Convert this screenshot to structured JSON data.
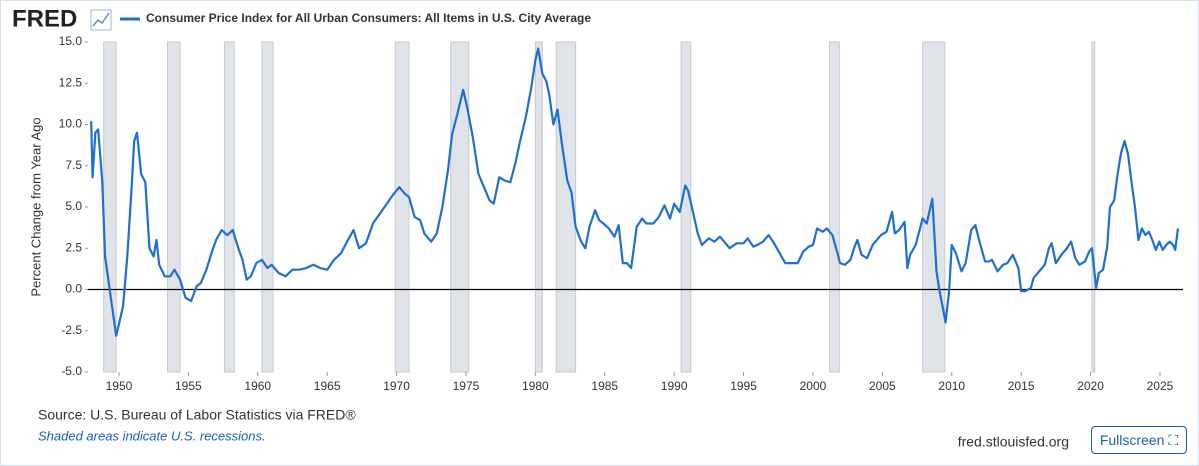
{
  "chart_data": {
    "type": "line",
    "logo": "FRED",
    "y_label": "Percent Change from Year Ago",
    "source": "Source: U.S. Bureau of Labor Statistics via FRED®",
    "note": "Shaded areas indicate U.S. recessions.",
    "site": "fred.stlouisfed.org",
    "button": "Fullscreen",
    "xlim": [
      1947.77,
      2026.66
    ],
    "xticks": [
      1950,
      1955,
      1960,
      1965,
      1970,
      1975,
      1980,
      1985,
      1990,
      1995,
      2000,
      2005,
      2010,
      2015,
      2020,
      2025
    ],
    "ylim": [
      -5,
      15
    ],
    "yticks": [
      {
        "value": 15,
        "label": "15.0"
      },
      {
        "value": 12.5,
        "label": "12.5"
      },
      {
        "value": 10,
        "label": "10.0"
      },
      {
        "value": 7.5,
        "label": "7.5"
      },
      {
        "value": 5,
        "label": "5.0"
      },
      {
        "value": 2.5,
        "label": "2.5"
      },
      {
        "value": 0,
        "label": "0.0"
      },
      {
        "value": -2.5,
        "label": "-2.5"
      },
      {
        "value": -5,
        "label": "-5.0"
      }
    ],
    "zero_line": 0,
    "recession_color": "#e0e4e9",
    "recessions": [
      [
        1948.9,
        1949.8
      ],
      [
        1953.5,
        1954.4
      ],
      [
        1957.6,
        1958.3
      ],
      [
        1960.3,
        1961.1
      ],
      [
        1969.9,
        1970.9
      ],
      [
        1973.9,
        1975.2
      ],
      [
        1980.0,
        1980.5
      ],
      [
        1981.5,
        1982.9
      ],
      [
        1990.5,
        1991.2
      ],
      [
        2001.2,
        2001.9
      ],
      [
        2007.9,
        2009.5
      ],
      [
        2020.1,
        2020.3
      ]
    ],
    "x": [
      1948.0,
      1948.1,
      1948.3,
      1948.5,
      1948.8,
      1949.0,
      1949.2,
      1949.5,
      1949.8,
      1950.0,
      1950.3,
      1950.6,
      1950.9,
      1951.1,
      1951.3,
      1951.6,
      1951.9,
      1952.2,
      1952.5,
      1952.7,
      1952.9,
      1953.3,
      1953.7,
      1954.0,
      1954.4,
      1954.8,
      1955.2,
      1955.6,
      1955.9,
      1956.3,
      1956.7,
      1957.0,
      1957.4,
      1957.8,
      1958.2,
      1958.6,
      1958.9,
      1959.2,
      1959.5,
      1959.9,
      1960.3,
      1960.7,
      1961.0,
      1961.5,
      1962.0,
      1962.5,
      1963.0,
      1963.5,
      1964.0,
      1964.5,
      1965.0,
      1965.5,
      1966.0,
      1966.5,
      1966.9,
      1967.3,
      1967.8,
      1968.3,
      1968.8,
      1969.3,
      1969.8,
      1970.2,
      1970.6,
      1970.9,
      1971.3,
      1971.7,
      1972.0,
      1972.5,
      1972.9,
      1973.3,
      1973.7,
      1974.0,
      1974.4,
      1974.8,
      1975.1,
      1975.5,
      1975.9,
      1976.3,
      1976.7,
      1977.0,
      1977.4,
      1977.8,
      1978.2,
      1978.6,
      1978.9,
      1979.3,
      1979.7,
      1980.0,
      1980.2,
      1980.5,
      1980.8,
      1981.0,
      1981.3,
      1981.6,
      1981.9,
      1982.3,
      1982.6,
      1982.9,
      1983.3,
      1983.6,
      1983.9,
      1984.3,
      1984.6,
      1984.9,
      1985.3,
      1985.7,
      1986.0,
      1986.3,
      1986.6,
      1986.9,
      1987.3,
      1987.7,
      1988.0,
      1988.5,
      1988.9,
      1989.3,
      1989.7,
      1990.0,
      1990.4,
      1990.8,
      1991.0,
      1991.3,
      1991.7,
      1992.0,
      1992.5,
      1992.9,
      1993.3,
      1993.7,
      1994.0,
      1994.5,
      1995.0,
      1995.3,
      1995.7,
      1996.0,
      1996.4,
      1996.8,
      1997.2,
      1997.6,
      1998.0,
      1998.5,
      1998.9,
      1999.3,
      1999.7,
      2000.0,
      2000.3,
      2000.7,
      2001.0,
      2001.4,
      2001.8,
      2001.95,
      2002.3,
      2002.7,
      2003.0,
      2003.2,
      2003.5,
      2003.9,
      2004.3,
      2004.6,
      2004.9,
      2005.3,
      2005.7,
      2005.9,
      2006.2,
      2006.6,
      2006.8,
      2007.0,
      2007.4,
      2007.9,
      2008.2,
      2008.6,
      2008.9,
      2009.1,
      2009.4,
      2009.55,
      2009.8,
      2010.0,
      2010.3,
      2010.7,
      2011.0,
      2011.4,
      2011.7,
      2012.0,
      2012.4,
      2012.7,
      2012.9,
      2013.3,
      2013.7,
      2014.0,
      2014.4,
      2014.8,
      2015.0,
      2015.3,
      2015.7,
      2015.9,
      2016.3,
      2016.7,
      2017.0,
      2017.2,
      2017.5,
      2017.9,
      2018.3,
      2018.6,
      2018.9,
      2019.2,
      2019.6,
      2019.9,
      2020.1,
      2020.4,
      2020.6,
      2020.9,
      2021.2,
      2021.4,
      2021.7,
      2021.95,
      2022.2,
      2022.45,
      2022.7,
      2022.95,
      2023.2,
      2023.45,
      2023.7,
      2023.95,
      2024.2,
      2024.45,
      2024.7,
      2024.95,
      2025.2,
      2025.45,
      2025.7,
      2025.95,
      2026.1,
      2026.3
    ],
    "series": [
      {
        "name": "Consumer Price Index for All Urban Consumers: All Items in U.S. City Average",
        "color": "#1f6fd1",
        "values": [
          10.2,
          6.8,
          9.5,
          9.7,
          6.5,
          2.0,
          0.8,
          -1.0,
          -2.8,
          -2.1,
          -1.0,
          2.0,
          6.0,
          9.0,
          9.5,
          7.0,
          6.5,
          2.5,
          2.0,
          3.0,
          1.5,
          0.8,
          0.8,
          1.2,
          0.6,
          -0.5,
          -0.7,
          0.2,
          0.4,
          1.2,
          2.3,
          3.0,
          3.6,
          3.3,
          3.6,
          2.5,
          1.8,
          0.6,
          0.8,
          1.6,
          1.8,
          1.3,
          1.5,
          1.0,
          0.8,
          1.2,
          1.2,
          1.3,
          1.5,
          1.3,
          1.2,
          1.8,
          2.2,
          3.0,
          3.6,
          2.5,
          2.8,
          4.0,
          4.6,
          5.2,
          5.8,
          6.2,
          5.8,
          5.6,
          4.4,
          4.2,
          3.4,
          2.9,
          3.4,
          5.0,
          7.2,
          9.4,
          10.7,
          12.1,
          11.0,
          9.2,
          7.0,
          6.2,
          5.4,
          5.2,
          6.8,
          6.6,
          6.5,
          7.8,
          9.0,
          10.4,
          12.2,
          13.9,
          14.6,
          13.1,
          12.6,
          11.8,
          10.0,
          10.9,
          8.9,
          6.6,
          5.9,
          3.8,
          2.9,
          2.5,
          3.8,
          4.8,
          4.2,
          4.0,
          3.7,
          3.2,
          3.9,
          1.6,
          1.6,
          1.3,
          3.8,
          4.3,
          4.0,
          4.0,
          4.4,
          5.1,
          4.3,
          5.2,
          4.7,
          6.3,
          6.0,
          4.9,
          3.4,
          2.7,
          3.1,
          2.9,
          3.2,
          2.8,
          2.5,
          2.8,
          2.8,
          3.1,
          2.6,
          2.7,
          2.9,
          3.3,
          2.8,
          2.2,
          1.6,
          1.6,
          1.6,
          2.3,
          2.6,
          2.7,
          3.7,
          3.5,
          3.7,
          3.3,
          2.1,
          1.6,
          1.5,
          1.8,
          2.6,
          3.0,
          2.1,
          1.9,
          2.7,
          3.0,
          3.3,
          3.5,
          4.7,
          3.4,
          3.6,
          4.1,
          1.3,
          2.1,
          2.7,
          4.3,
          4.0,
          5.5,
          1.1,
          0.0,
          -1.3,
          -2.0,
          -0.2,
          2.7,
          2.2,
          1.1,
          1.6,
          3.6,
          3.9,
          2.9,
          1.7,
          1.7,
          1.8,
          1.1,
          1.5,
          1.6,
          2.1,
          1.3,
          -0.1,
          -0.1,
          0.1,
          0.7,
          1.1,
          1.5,
          2.5,
          2.8,
          1.6,
          2.1,
          2.5,
          2.9,
          1.9,
          1.5,
          1.7,
          2.3,
          2.5,
          0.1,
          1.0,
          1.2,
          2.6,
          5.0,
          5.4,
          7.0,
          8.3,
          9.0,
          8.2,
          6.5,
          5.0,
          3.0,
          3.7,
          3.3,
          3.5,
          3.0,
          2.4,
          2.9,
          2.4,
          2.7,
          2.9,
          2.7,
          2.4,
          3.7
        ]
      }
    ]
  }
}
